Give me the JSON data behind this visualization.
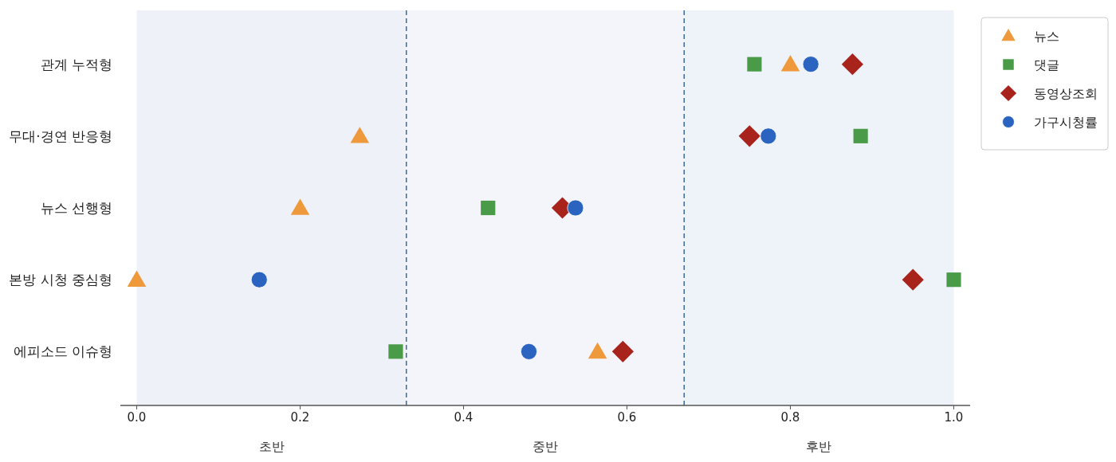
{
  "chart_data": {
    "type": "scatter",
    "orientation": "horizontal",
    "categories": [
      "관계 누적형",
      "무대·경연 반응형",
      "뉴스 선행형",
      "본방 시청 중심형",
      "에피소드 이슈형"
    ],
    "series": [
      {
        "name": "뉴스",
        "color": "#ee9a3c",
        "marker": "triangle",
        "values": [
          0.8,
          0.273,
          0.2,
          0.0,
          0.564
        ]
      },
      {
        "name": "댓글",
        "color": "#4a9b48",
        "marker": "square",
        "values": [
          0.756,
          0.886,
          0.43,
          1.0,
          0.317
        ]
      },
      {
        "name": "동영상조회",
        "color": "#a8231c",
        "marker": "diamond",
        "values": [
          0.876,
          0.75,
          0.521,
          0.95,
          0.595
        ]
      },
      {
        "name": "가구시청률",
        "color": "#2a64c0",
        "marker": "circle",
        "values": [
          0.825,
          0.773,
          0.537,
          0.15,
          0.48
        ]
      }
    ],
    "xlim": [
      -0.02,
      1.02
    ],
    "xticks": [
      {
        "value": 0,
        "label": "0.0"
      },
      0.2,
      0.4,
      0.6,
      0.8,
      {
        "value": 1,
        "label": "1.0"
      }
    ],
    "bands": [
      {
        "axis": "x",
        "from": 0,
        "to": 0.33,
        "label": "초반",
        "color": "#eef1f7"
      },
      {
        "axis": "x",
        "from": 0.33,
        "to": 0.67,
        "label": "중반",
        "color": "#f3f5fa"
      },
      {
        "axis": "x",
        "from": 0.67,
        "to": 1.0,
        "label": "후반",
        "color": "#eef2f9"
      }
    ],
    "ref_lines": [
      {
        "axis": "x",
        "value": 0.33,
        "color": "#3d6a9e",
        "line_style": "dashed"
      },
      {
        "axis": "x",
        "value": 0.67,
        "color": "#3d6a9e",
        "line_style": "dashed"
      }
    ],
    "legend": "top right",
    "grid": false
  }
}
